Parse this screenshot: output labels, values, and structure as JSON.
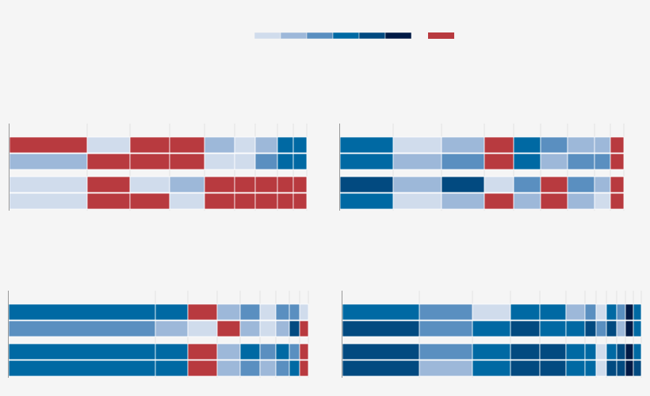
{
  "chart_data": {
    "type": "stacked-bar",
    "palette": [
      "#d0dcec",
      "#9db8d9",
      "#5a8fc0",
      "#0069a3",
      "#024a80",
      "#001a45"
    ],
    "highlight": "#b83a3f",
    "panels": [
      {
        "widths": [
          98,
          54,
          50,
          44,
          38,
          26,
          28,
          20,
          17
        ],
        "rows": [
          [
            "r",
            0,
            "r",
            "r",
            1,
            0,
            1,
            3,
            3
          ],
          [
            1,
            "r",
            "r",
            "r",
            0,
            0,
            2,
            3,
            3
          ],
          [
            0,
            "r",
            0,
            1,
            "r",
            "r",
            "r",
            "r",
            "r"
          ],
          [
            0,
            "r",
            "r",
            0,
            "r",
            "r",
            "r",
            "r",
            "r"
          ]
        ]
      },
      {
        "widths": [
          67,
          61,
          54,
          37,
          34,
          34,
          34,
          20,
          17
        ],
        "rows": [
          [
            3,
            0,
            1,
            "r",
            3,
            2,
            1,
            1,
            "r"
          ],
          [
            3,
            1,
            2,
            "r",
            3,
            1,
            2,
            2,
            "r"
          ],
          [
            4,
            1,
            4,
            0,
            2,
            "r",
            2,
            1,
            "r"
          ],
          [
            3,
            0,
            1,
            "r",
            1,
            "r",
            1,
            0,
            "r"
          ]
        ]
      },
      {
        "widths": [
          185,
          41,
          37,
          29,
          25,
          20,
          17,
          13,
          11
        ],
        "rows": [
          [
            3,
            3,
            "r",
            1,
            2,
            0,
            2,
            2,
            0
          ],
          [
            2,
            1,
            0,
            "r",
            1,
            0,
            1,
            4,
            "r"
          ],
          [
            3,
            3,
            "r",
            1,
            3,
            2,
            3,
            2,
            "r"
          ],
          [
            3,
            3,
            "r",
            1,
            2,
            1,
            2,
            3,
            "r"
          ]
        ]
      },
      {
        "widths": [
          97,
          67,
          48,
          37,
          33,
          24,
          14,
          13,
          13,
          11,
          10,
          10
        ],
        "rows": [
          [
            3,
            2,
            0,
            3,
            3,
            1,
            2,
            0,
            3,
            2,
            5,
            3
          ],
          [
            4,
            2,
            3,
            4,
            3,
            3,
            4,
            2,
            4,
            1,
            5,
            3
          ],
          [
            4,
            2,
            3,
            4,
            4,
            3,
            3,
            0,
            3,
            4,
            5,
            3
          ],
          [
            4,
            1,
            3,
            4,
            4,
            3,
            3,
            0,
            4,
            4,
            5,
            4
          ]
        ]
      }
    ]
  }
}
